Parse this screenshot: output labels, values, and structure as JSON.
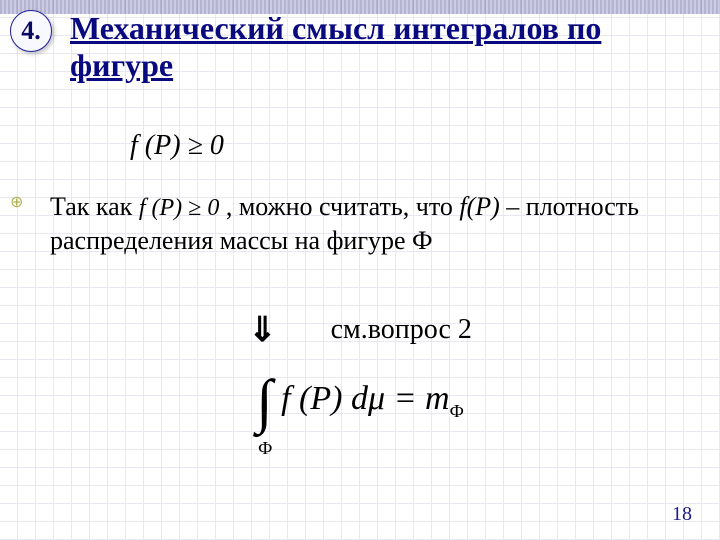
{
  "marker": "4.",
  "title": "Механический смысл интегралов по фигуре",
  "formula1_html": "f (P) ≥ 0",
  "body": {
    "prefix": "Так как ",
    "inline_formula": "f (P) ≥ 0",
    "mid": "  , можно считать, что ",
    "fP": "f(P)",
    "tail": " – плотность распределения массы на фигуре Ф"
  },
  "arrow_glyph": "⇓",
  "see_text": "см.вопрос 2",
  "integral": {
    "sign": "∫",
    "sub": "Ф",
    "fn_open": "f (",
    "arg": "P",
    "fn_close": ") d",
    "mu": "μ",
    "eq": " = m",
    "result_sub": "Ф"
  },
  "page_number": "18",
  "colors": {
    "title": "#0a0a80",
    "grid": "#e8e8f0",
    "text": "#000000",
    "pagenum": "#1a1a90"
  }
}
